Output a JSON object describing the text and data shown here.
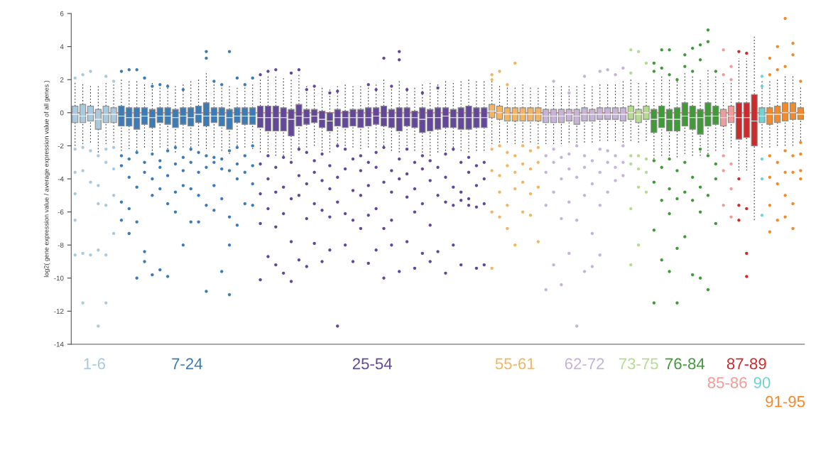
{
  "chart_data": {
    "type": "box",
    "ylabel": "log2( gene expression value / average expression value of all genes )",
    "categories": [
      null,
      null,
      null,
      null,
      null,
      null,
      null,
      null,
      null,
      null,
      null,
      null,
      null,
      null,
      null,
      null,
      null,
      null,
      null,
      null,
      null,
      null,
      null,
      null,
      null,
      null,
      null,
      null,
      null,
      null,
      null,
      null,
      null,
      null,
      null,
      null,
      null,
      null,
      null,
      null,
      null,
      null,
      null,
      null,
      null,
      null,
      null,
      null,
      null,
      null,
      null,
      null,
      null,
      null,
      null,
      null,
      null,
      null,
      null,
      null,
      null,
      null,
      null,
      null,
      null,
      null,
      null,
      null,
      null,
      null,
      null,
      null,
      null,
      null,
      null,
      null,
      null,
      null,
      null,
      null,
      null,
      null,
      null,
      null,
      null,
      null,
      null,
      null,
      null,
      null,
      null,
      null,
      null,
      null,
      null
    ],
    "ylim": [
      -14,
      6
    ],
    "yticks": [
      -14,
      -12,
      -10,
      -8,
      -6,
      -4,
      -2,
      0,
      2,
      4,
      6
    ],
    "marker": "circle",
    "grid": false,
    "legend": false,
    "ref_lines": [
      {
        "axis": "y",
        "value": 0,
        "color": "#e8817f"
      }
    ],
    "annotations": [
      "1-6",
      "7-24",
      "25-54",
      "55-61",
      "62-72",
      "73-75",
      "76-84",
      "85-86",
      "87-89",
      "90",
      "91-95"
    ],
    "colors": [
      "#a9c9dd",
      "#a9c9dd",
      "#a9c9dd",
      "#a9c9dd",
      "#a9c9dd",
      "#a9c9dd",
      "#3b7cb8",
      "#3b7cb8",
      "#3b7cb8",
      "#3b7cb8",
      "#3b7cb8",
      "#3b7cb8",
      "#3b7cb8",
      "#3b7cb8",
      "#3b7cb8",
      "#3b7cb8",
      "#3b7cb8",
      "#3b7cb8",
      "#3b7cb8",
      "#3b7cb8",
      "#3b7cb8",
      "#3b7cb8",
      "#3b7cb8",
      "#3b7cb8",
      "#62479b",
      "#62479b",
      "#62479b",
      "#62479b",
      "#62479b",
      "#62479b",
      "#62479b",
      "#62479b",
      "#62479b",
      "#62479b",
      "#62479b",
      "#62479b",
      "#62479b",
      "#62479b",
      "#62479b",
      "#62479b",
      "#62479b",
      "#62479b",
      "#62479b",
      "#62479b",
      "#62479b",
      "#62479b",
      "#62479b",
      "#62479b",
      "#62479b",
      "#62479b",
      "#62479b",
      "#62479b",
      "#62479b",
      "#62479b",
      "#f3b562",
      "#f3b562",
      "#f3b562",
      "#f3b562",
      "#f3b562",
      "#f3b562",
      "#f3b562",
      "#c5b3d8",
      "#c5b3d8",
      "#c5b3d8",
      "#c5b3d8",
      "#c5b3d8",
      "#c5b3d8",
      "#c5b3d8",
      "#c5b3d8",
      "#c5b3d8",
      "#c5b3d8",
      "#c5b3d8",
      "#b5db8f",
      "#b5db8f",
      "#b5db8f",
      "#3f9a37",
      "#3f9a37",
      "#3f9a37",
      "#3f9a37",
      "#3f9a37",
      "#3f9a37",
      "#3f9a37",
      "#3f9a37",
      "#3f9a37",
      "#f09c9b",
      "#f09c9b",
      "#cf2a2b",
      "#cf2a2b",
      "#cf2a2b",
      "#6fd3d1",
      "#f08a2a",
      "#f08a2a",
      "#f08a2a",
      "#f08a2a",
      "#f08a2a"
    ],
    "boxes": [
      {
        "low": -2.0,
        "q1": -0.6,
        "median": -0.1,
        "q3": 0.4,
        "high": 1.9,
        "outliers": [
          2.1,
          -2.2,
          -3.6,
          -4.9,
          -6.5,
          -8.6
        ]
      },
      {
        "low": -1.9,
        "q1": -0.6,
        "median": -0.2,
        "q3": 0.5,
        "high": 1.8,
        "outliers": [
          2.3,
          -2.1,
          -3.5,
          -8.5,
          -11.5
        ]
      },
      {
        "low": -1.8,
        "q1": -0.5,
        "median": -0.1,
        "q3": 0.4,
        "high": 1.7,
        "outliers": [
          2.5,
          -2.3,
          -4.2,
          -8.6
        ]
      },
      {
        "low": -2.4,
        "q1": -1.0,
        "median": -0.4,
        "q3": 0.2,
        "high": 1.6,
        "outliers": [
          -2.6,
          -4.4,
          -5.5,
          -8.3,
          -12.9
        ]
      },
      {
        "low": -1.9,
        "q1": -0.6,
        "median": -0.1,
        "q3": 0.4,
        "high": 1.8,
        "outliers": [
          2.2,
          -2.2,
          -3.0,
          -5.6,
          -8.6,
          -11.5
        ]
      },
      {
        "low": -1.8,
        "q1": -0.6,
        "median": -0.1,
        "q3": 0.3,
        "high": 1.7,
        "outliers": [
          1.9,
          -2.1,
          -3.4,
          -5.0,
          -7.3
        ]
      },
      {
        "low": -2.3,
        "q1": -0.8,
        "median": -0.2,
        "q3": 0.4,
        "high": 2.0,
        "outliers": [
          2.5,
          -2.6,
          -3.2,
          -5.4,
          -6.5
        ]
      },
      {
        "low": -2.2,
        "q1": -0.8,
        "median": -0.3,
        "q3": 0.3,
        "high": 2.0,
        "outliers": [
          2.6,
          -2.8,
          -3.9,
          -5.8,
          -7.3
        ]
      },
      {
        "low": -2.5,
        "q1": -1.0,
        "median": -0.3,
        "q3": 0.3,
        "high": 1.9,
        "outliers": [
          2.6,
          -2.4,
          -4.5,
          -6.6,
          -10.0
        ]
      },
      {
        "low": -2.1,
        "q1": -0.7,
        "median": -0.2,
        "q3": 0.3,
        "high": 1.8,
        "outliers": [
          2.1,
          -3.0,
          -3.6,
          -8.4,
          -9.0
        ]
      },
      {
        "low": -2.3,
        "q1": -0.9,
        "median": -0.3,
        "q3": 0.2,
        "high": 1.8,
        "outliers": [
          1.6,
          -2.5,
          -4.0,
          -5.0,
          -9.8
        ]
      },
      {
        "low": -2.1,
        "q1": -0.6,
        "median": -0.2,
        "q3": 0.3,
        "high": 1.7,
        "outliers": [
          1.7,
          -2.9,
          -3.3,
          -4.6,
          -9.5
        ]
      },
      {
        "low": -2.2,
        "q1": -0.7,
        "median": -0.2,
        "q3": 0.3,
        "high": 1.8,
        "outliers": [
          1.6,
          -2.3,
          -3.8,
          -5.5,
          -9.9
        ]
      },
      {
        "low": -2.4,
        "q1": -0.9,
        "median": -0.3,
        "q3": 0.2,
        "high": 1.7,
        "outliers": [
          -2.1,
          -3.1,
          -4.8,
          -6.0
        ]
      },
      {
        "low": -2.1,
        "q1": -0.7,
        "median": -0.2,
        "q3": 0.3,
        "high": 1.8,
        "outliers": [
          1.4,
          -2.7,
          -3.5,
          -4.4,
          -8.0
        ]
      },
      {
        "low": -2.3,
        "q1": -0.8,
        "median": -0.3,
        "q3": 0.3,
        "high": 1.9,
        "outliers": [
          -2.2,
          -3.0,
          -4.6,
          -6.6
        ]
      },
      {
        "low": -2.0,
        "q1": -0.6,
        "median": -0.1,
        "q3": 0.4,
        "high": 2.0,
        "outliers": [
          -2.4,
          -3.6,
          -5.0,
          -6.6
        ]
      },
      {
        "low": -2.2,
        "q1": -0.8,
        "median": -0.2,
        "q3": 0.6,
        "high": 2.4,
        "outliers": [
          3.7,
          3.3,
          -2.6,
          -3.3,
          -5.6,
          -10.8
        ]
      },
      {
        "low": -2.1,
        "q1": -0.6,
        "median": -0.2,
        "q3": 0.3,
        "high": 1.9,
        "outliers": [
          1.9,
          -2.7,
          -3.0,
          -4.4,
          -5.9
        ]
      },
      {
        "low": -2.3,
        "q1": -0.8,
        "median": -0.2,
        "q3": 0.3,
        "high": 1.8,
        "outliers": [
          1.7,
          -2.8,
          -3.4,
          -5.2,
          -9.6
        ]
      },
      {
        "low": -2.5,
        "q1": -1.0,
        "median": -0.3,
        "q3": 0.2,
        "high": 1.7,
        "outliers": [
          3.7,
          -2.3,
          -3.5,
          -6.3,
          -8.0,
          -11.0
        ]
      },
      {
        "low": -2.0,
        "q1": -0.6,
        "median": -0.2,
        "q3": 0.3,
        "high": 1.5,
        "outliers": [
          2.1,
          -2.1,
          -3.1,
          -4.0,
          -6.8
        ]
      },
      {
        "low": -2.1,
        "q1": -0.7,
        "median": -0.2,
        "q3": 0.3,
        "high": 1.6,
        "outliers": [
          1.7,
          -2.6,
          -3.6,
          -5.5
        ]
      },
      {
        "low": -2.2,
        "q1": -0.7,
        "median": -0.2,
        "q3": 0.3,
        "high": 1.7,
        "outliers": [
          2.1,
          -2.0,
          -3.2,
          -4.3,
          -5.6
        ]
      },
      {
        "low": -2.4,
        "q1": -0.9,
        "median": -0.3,
        "q3": 0.4,
        "high": 2.1,
        "outliers": [
          2.3,
          -3.1,
          -4.9,
          -6.7,
          -10.1
        ]
      },
      {
        "low": -2.6,
        "q1": -1.1,
        "median": -0.3,
        "q3": 0.4,
        "high": 2.2,
        "outliers": [
          2.5,
          -2.6,
          -4.0,
          -5.8,
          -8.7
        ]
      },
      {
        "low": -2.6,
        "q1": -1.1,
        "median": -0.3,
        "q3": 0.4,
        "high": 2.2,
        "outliers": [
          2.6,
          -3.3,
          -4.8,
          -6.9,
          -9.2
        ]
      },
      {
        "low": -2.6,
        "q1": -1.1,
        "median": -0.3,
        "q3": 0.3,
        "high": 2.1,
        "outliers": [
          -2.7,
          -4.5,
          -6.1,
          -9.7
        ]
      },
      {
        "low": -2.8,
        "q1": -1.4,
        "median": -0.4,
        "q3": 0.2,
        "high": 2.1,
        "outliers": [
          2.4,
          -3.0,
          -5.2,
          -7.8,
          -10.2
        ]
      },
      {
        "low": -2.3,
        "q1": -0.8,
        "median": -0.2,
        "q3": 0.5,
        "high": 2.3,
        "outliers": [
          2.6,
          -2.2,
          -3.8,
          -5.0,
          -8.9
        ]
      },
      {
        "low": -2.1,
        "q1": -0.7,
        "median": -0.3,
        "q3": 0.2,
        "high": 1.6,
        "outliers": [
          1.4,
          -2.4,
          -4.3,
          -6.4,
          -9.3
        ]
      },
      {
        "low": -2.0,
        "q1": -0.6,
        "median": -0.2,
        "q3": 0.2,
        "high": 1.6,
        "outliers": [
          1.6,
          -2.9,
          -3.6,
          -5.5,
          -7.9
        ]
      },
      {
        "low": -2.3,
        "q1": -0.9,
        "median": -0.4,
        "q3": 0.1,
        "high": 1.5,
        "outliers": [
          -2.5,
          -4.1,
          -5.9,
          -9.0
        ]
      },
      {
        "low": -2.4,
        "q1": -1.1,
        "median": -0.5,
        "q3": 0.0,
        "high": 1.4,
        "outliers": [
          1.2,
          -3.2,
          -4.6,
          -6.3,
          -8.3
        ]
      },
      {
        "low": -2.1,
        "q1": -0.8,
        "median": -0.3,
        "q3": 0.2,
        "high": 1.6,
        "outliers": [
          1.3,
          -2.0,
          -3.9,
          -5.4,
          -12.9
        ]
      },
      {
        "low": -2.2,
        "q1": -0.9,
        "median": -0.3,
        "q3": 0.1,
        "high": 1.7,
        "outliers": [
          -2.2,
          -3.4,
          -6.1,
          -8.0
        ]
      },
      {
        "low": -2.1,
        "q1": -0.8,
        "median": -0.3,
        "q3": 0.2,
        "high": 1.6,
        "outliers": [
          -2.8,
          -4.7,
          -6.5,
          -9.0
        ]
      },
      {
        "low": -2.2,
        "q1": -0.9,
        "median": -0.3,
        "q3": 0.2,
        "high": 1.7,
        "outliers": [
          -2.6,
          -3.5,
          -5.0,
          -7.0
        ]
      },
      {
        "low": -2.1,
        "q1": -0.8,
        "median": -0.3,
        "q3": 0.3,
        "high": 1.8,
        "outliers": [
          1.7,
          -3.0,
          -4.4,
          -6.2,
          -9.1
        ]
      },
      {
        "low": -2.1,
        "q1": -0.7,
        "median": -0.2,
        "q3": 0.3,
        "high": 1.7,
        "outliers": [
          1.4,
          -2.4,
          -3.3,
          -5.8,
          -8.3
        ]
      },
      {
        "low": -2.2,
        "q1": -0.8,
        "median": -0.3,
        "q3": 0.4,
        "high": 2.0,
        "outliers": [
          3.3,
          -2.1,
          -4.2,
          -7.0,
          -10.0
        ]
      },
      {
        "low": -2.3,
        "q1": -0.9,
        "median": -0.3,
        "q3": 0.2,
        "high": 1.7,
        "outliers": [
          1.6,
          -3.5,
          -4.8,
          -6.5,
          -8.0
        ]
      },
      {
        "low": -2.4,
        "q1": -1.1,
        "median": -0.3,
        "q3": 0.3,
        "high": 2.0,
        "outliers": [
          3.7,
          3.2,
          -2.8,
          -4.0,
          -9.6
        ]
      },
      {
        "low": -2.2,
        "q1": -0.8,
        "median": -0.3,
        "q3": 0.3,
        "high": 1.6,
        "outliers": [
          1.4,
          -2.2,
          -3.7,
          -5.1,
          -7.8
        ]
      },
      {
        "low": -2.3,
        "q1": -0.9,
        "median": -0.3,
        "q3": 0.1,
        "high": 1.5,
        "outliers": [
          -3.0,
          -4.6,
          -6.0,
          -9.4
        ]
      },
      {
        "low": -2.6,
        "q1": -1.2,
        "median": -0.4,
        "q3": 0.3,
        "high": 1.8,
        "outliers": [
          1.2,
          -2.6,
          -3.4,
          -5.5,
          -8.5
        ]
      },
      {
        "low": -2.6,
        "q1": -1.1,
        "median": -0.3,
        "q3": 0.2,
        "high": 1.9,
        "outliers": [
          -2.9,
          -4.1,
          -6.8,
          -9.0
        ]
      },
      {
        "low": -2.4,
        "q1": -1.0,
        "median": -0.3,
        "q3": 0.3,
        "high": 1.8,
        "outliers": [
          1.5,
          -3.3,
          -5.0,
          -8.4
        ]
      },
      {
        "low": -2.3,
        "q1": -0.9,
        "median": -0.2,
        "q3": 0.3,
        "high": 2.0,
        "outliers": [
          -2.5,
          -3.9,
          -5.4,
          -9.7
        ]
      },
      {
        "low": -2.3,
        "q1": -0.9,
        "median": -0.3,
        "q3": 0.2,
        "high": 1.9,
        "outliers": [
          -2.2,
          -4.5,
          -5.6,
          -8.0
        ]
      },
      {
        "low": -2.3,
        "q1": -1.0,
        "median": -0.3,
        "q3": 0.3,
        "high": 1.9,
        "outliers": [
          -3.0,
          -4.8,
          -5.3,
          -9.2
        ]
      },
      {
        "low": -2.4,
        "q1": -1.0,
        "median": -0.3,
        "q3": 0.4,
        "high": 2.0,
        "outliers": [
          -2.7,
          -3.6,
          -5.2,
          -5.6
        ]
      },
      {
        "low": -2.3,
        "q1": -0.9,
        "median": -0.3,
        "q3": 0.3,
        "high": 1.9,
        "outliers": [
          -3.2,
          -4.4,
          -5.7,
          -9.4
        ]
      },
      {
        "low": -2.3,
        "q1": -0.9,
        "median": -0.3,
        "q3": 0.3,
        "high": 1.9,
        "outliers": [
          -3.0,
          -4.0,
          -5.5,
          -9.2
        ]
      },
      {
        "low": -1.9,
        "q1": -0.3,
        "median": 0.1,
        "q3": 0.5,
        "high": 2.0,
        "outliers": [
          2.3,
          2.0,
          -2.2,
          -3.5,
          -6.0,
          -9.4
        ]
      },
      {
        "low": -1.8,
        "q1": -0.4,
        "median": 0.0,
        "q3": 0.4,
        "high": 1.7,
        "outliers": [
          2.5,
          -2.0,
          -3.8,
          -4.8,
          -6.3
        ]
      },
      {
        "low": -1.8,
        "q1": -0.5,
        "median": -0.1,
        "q3": 0.3,
        "high": 1.6,
        "outliers": [
          1.7,
          -2.4,
          -3.2,
          -5.6,
          -7.0
        ]
      },
      {
        "low": -1.9,
        "q1": -0.5,
        "median": -0.1,
        "q3": 0.3,
        "high": 1.6,
        "outliers": [
          3.0,
          -2.6,
          -3.6,
          -4.6,
          -8.0
        ]
      },
      {
        "low": -1.8,
        "q1": -0.5,
        "median": -0.1,
        "q3": 0.3,
        "high": 1.7,
        "outliers": [
          -2.0,
          -3.1,
          -4.2,
          -6.0
        ]
      },
      {
        "low": -1.8,
        "q1": -0.5,
        "median": -0.1,
        "q3": 0.3,
        "high": 1.6,
        "outliers": [
          -2.3,
          -3.4,
          -4.9,
          -6.2
        ]
      },
      {
        "low": -1.9,
        "q1": -0.5,
        "median": -0.1,
        "q3": 0.3,
        "high": 1.5,
        "outliers": [
          -2.1,
          -3.0,
          -4.5,
          -7.8
        ]
      },
      {
        "low": -1.9,
        "q1": -0.6,
        "median": -0.2,
        "q3": 0.2,
        "high": 1.6,
        "outliers": [
          -2.6,
          -3.6,
          -5.6,
          -10.7
        ]
      },
      {
        "low": -1.9,
        "q1": -0.6,
        "median": -0.2,
        "q3": 0.2,
        "high": 1.6,
        "outliers": [
          1.9,
          -2.2,
          -3.0,
          -4.8,
          -9.2
        ]
      },
      {
        "low": -1.9,
        "q1": -0.6,
        "median": -0.2,
        "q3": 0.2,
        "high": 1.7,
        "outliers": [
          -2.7,
          -4.0,
          -6.4,
          -10.4
        ]
      },
      {
        "low": -1.8,
        "q1": -0.5,
        "median": -0.1,
        "q3": 0.2,
        "high": 1.7,
        "outliers": [
          1.2,
          -2.5,
          -3.4,
          -5.4,
          -8.5
        ]
      },
      {
        "low": -2.0,
        "q1": -0.7,
        "median": -0.2,
        "q3": 0.2,
        "high": 1.6,
        "outliers": [
          -2.0,
          -3.9,
          -6.5,
          -12.9
        ]
      },
      {
        "low": -1.8,
        "q1": -0.5,
        "median": -0.1,
        "q3": 0.3,
        "high": 1.7,
        "outliers": [
          2.2,
          -2.6,
          -3.3,
          -5.0,
          -9.6
        ]
      },
      {
        "low": -1.8,
        "q1": -0.5,
        "median": -0.1,
        "q3": 0.2,
        "high": 1.6,
        "outliers": [
          -2.9,
          -4.3,
          -7.3,
          -9.3
        ]
      },
      {
        "low": -1.7,
        "q1": -0.4,
        "median": -0.1,
        "q3": 0.3,
        "high": 1.8,
        "outliers": [
          2.5,
          -2.2,
          -3.6,
          -5.6,
          -8.6
        ]
      },
      {
        "low": -1.7,
        "q1": -0.4,
        "median": -0.1,
        "q3": 0.3,
        "high": 1.8,
        "outliers": [
          2.6,
          -2.3,
          -3.0,
          -4.8
        ]
      },
      {
        "low": -1.7,
        "q1": -0.4,
        "median": -0.1,
        "q3": 0.3,
        "high": 1.8,
        "outliers": [
          2.3,
          -2.6,
          -3.3,
          -4.1
        ]
      },
      {
        "low": -1.8,
        "q1": -0.5,
        "median": -0.1,
        "q3": 0.3,
        "high": 2.0,
        "outliers": [
          2.7,
          -2.0,
          -3.0,
          -3.8
        ]
      },
      {
        "low": -1.7,
        "q1": -0.4,
        "median": 0.0,
        "q3": 0.4,
        "high": 2.1,
        "outliers": [
          2.4,
          3.8,
          -2.6,
          -3.1,
          -5.8,
          -9.2
        ]
      },
      {
        "low": -1.8,
        "q1": -0.6,
        "median": -0.1,
        "q3": 0.2,
        "high": 1.8,
        "outliers": [
          3.7,
          -2.6,
          -3.4,
          -4.5,
          -8.0
        ]
      },
      {
        "low": -1.7,
        "q1": -0.4,
        "median": 0.0,
        "q3": 0.4,
        "high": 1.9,
        "outliers": [
          3.0,
          -2.8,
          -3.6,
          -4.8
        ]
      },
      {
        "low": -2.8,
        "q1": -1.2,
        "median": -0.4,
        "q3": 0.2,
        "high": 2.1,
        "outliers": [
          2.5,
          3.0,
          -2.9,
          -4.2,
          -7.1,
          -11.5
        ]
      },
      {
        "low": -2.6,
        "q1": -0.9,
        "median": -0.3,
        "q3": 0.4,
        "high": 2.3,
        "outliers": [
          3.8,
          2.7,
          -3.3,
          -5.3,
          -8.9
        ]
      },
      {
        "low": -2.6,
        "q1": -1.1,
        "median": -0.4,
        "q3": 0.2,
        "high": 2.0,
        "outliers": [
          3.8,
          2.3,
          -2.8,
          -4.6,
          -6.1,
          -9.6
        ]
      },
      {
        "low": -2.7,
        "q1": -1.1,
        "median": -0.4,
        "q3": 0.3,
        "high": 2.2,
        "outliers": [
          2.0,
          -3.5,
          -5.2,
          -8.2,
          -11.5
        ]
      },
      {
        "low": -2.5,
        "q1": -0.8,
        "median": -0.2,
        "q3": 0.6,
        "high": 2.4,
        "outliers": [
          3.5,
          2.8,
          -3.0,
          -4.8,
          -7.5
        ]
      },
      {
        "low": -2.6,
        "q1": -1.0,
        "median": -0.3,
        "q3": 0.4,
        "high": 2.3,
        "outliers": [
          3.9,
          2.5,
          -3.9,
          -5.3,
          -9.8
        ]
      },
      {
        "low": -2.6,
        "q1": -1.3,
        "median": -0.3,
        "q3": 0.2,
        "high": 2.1,
        "outliers": [
          4.1,
          3.2,
          -2.2,
          -4.5,
          -6.0,
          -10.0
        ]
      },
      {
        "low": -2.5,
        "q1": -0.8,
        "median": -0.2,
        "q3": 0.6,
        "high": 2.6,
        "outliers": [
          5.0,
          4.3,
          -2.6,
          -5.0,
          -10.7
        ]
      },
      {
        "low": -2.3,
        "q1": -0.7,
        "median": -0.2,
        "q3": 0.4,
        "high": 2.2,
        "outliers": [
          2.5,
          -3.1,
          -4.0,
          -6.7
        ]
      },
      {
        "low": -2.2,
        "q1": -0.8,
        "median": -0.3,
        "q3": 0.2,
        "high": 1.9,
        "outliers": [
          2.3,
          3.8,
          -2.6,
          -3.5,
          -5.6
        ]
      },
      {
        "low": -2.1,
        "q1": -0.6,
        "median": -0.2,
        "q3": 0.4,
        "high": 2.1,
        "outliers": [
          2.0,
          2.8,
          -3.1,
          -4.6,
          -6.3
        ]
      },
      {
        "low": -3.5,
        "q1": -1.6,
        "median": -0.3,
        "q3": 0.6,
        "high": 3.3,
        "outliers": [
          3.7,
          -4.0,
          -5.6,
          -6.5
        ]
      },
      {
        "low": -3.5,
        "q1": -1.5,
        "median": -0.3,
        "q3": 0.6,
        "high": 3.3,
        "outliers": [
          3.6,
          -5.8,
          -8.5,
          -9.9
        ]
      },
      {
        "low": -6.5,
        "q1": -2.0,
        "median": -0.5,
        "q3": 1.1,
        "high": 4.6
      },
      {
        "low": -2.1,
        "q1": -0.6,
        "median": -0.2,
        "q3": 0.3,
        "high": 2.0,
        "outliers": [
          2.2,
          1.6,
          -2.8,
          -4.0,
          -6.2
        ]
      },
      {
        "low": -2.1,
        "q1": -0.7,
        "median": -0.1,
        "q3": 0.3,
        "high": 1.9,
        "outliers": [
          2.3,
          3.3,
          -2.6,
          -3.9,
          -5.6,
          -7.2
        ]
      },
      {
        "low": -2.0,
        "q1": -0.6,
        "median": -0.1,
        "q3": 0.4,
        "high": 2.0,
        "outliers": [
          2.6,
          4.0,
          -3.0,
          -4.3,
          -6.5
        ]
      },
      {
        "low": -2.0,
        "q1": -0.5,
        "median": 0.0,
        "q3": 0.6,
        "high": 2.3,
        "outliers": [
          2.8,
          5.7,
          -2.3,
          -3.6,
          -5.0,
          -6.3
        ]
      },
      {
        "low": -2.0,
        "q1": -0.4,
        "median": 0.0,
        "q3": 0.6,
        "high": 2.3,
        "outliers": [
          3.5,
          4.2,
          -2.6,
          -3.6,
          -5.5,
          -7.0
        ]
      },
      {
        "low": -1.7,
        "q1": -0.4,
        "median": -0.1,
        "q3": 0.3,
        "high": 1.6,
        "outliers": [
          1.9,
          -1.8,
          -2.5,
          -3.5,
          -4.0
        ]
      }
    ]
  }
}
